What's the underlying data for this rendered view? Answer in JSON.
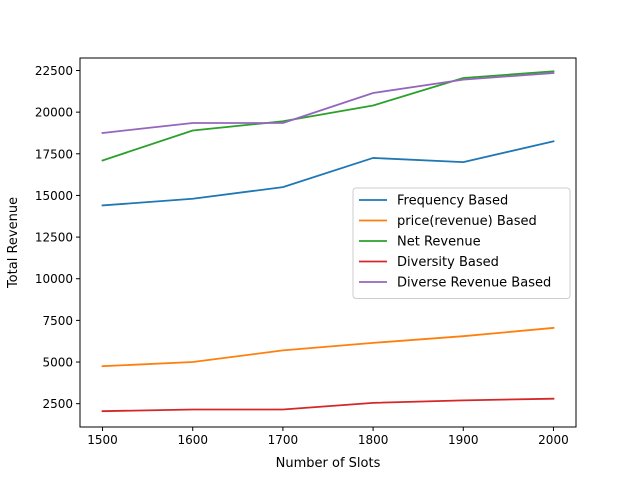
{
  "chart_data": {
    "type": "line",
    "title": "",
    "xlabel": "Number of Slots",
    "ylabel": "Total Revenue",
    "x": [
      1500,
      1600,
      1700,
      1800,
      1900,
      2000
    ],
    "xticks": [
      1500,
      1600,
      1700,
      1800,
      1900,
      2000
    ],
    "xlim": [
      1475,
      2025
    ],
    "yticks": [
      2500,
      5000,
      7500,
      10000,
      12500,
      15000,
      17500,
      20000,
      22500
    ],
    "ylim": [
      1100,
      23250
    ],
    "grid": false,
    "legend_position": "center-right",
    "series": [
      {
        "name": "Frequency Based",
        "color": "#1f77b4",
        "values": [
          14400,
          14800,
          15500,
          17250,
          17000,
          18250
        ]
      },
      {
        "name": "price(revenue) Based",
        "color": "#ff7f0e",
        "values": [
          4750,
          5000,
          5700,
          6150,
          6550,
          7050
        ]
      },
      {
        "name": "Net Revenue",
        "color": "#2ca02c",
        "values": [
          17100,
          18900,
          19450,
          20400,
          22050,
          22450
        ]
      },
      {
        "name": "Diversity Based",
        "color": "#d62728",
        "values": [
          2050,
          2150,
          2150,
          2550,
          2700,
          2800
        ]
      },
      {
        "name": "Diverse Revenue Based",
        "color": "#9467bd",
        "values": [
          18750,
          19350,
          19350,
          21150,
          21950,
          22350
        ]
      }
    ]
  }
}
